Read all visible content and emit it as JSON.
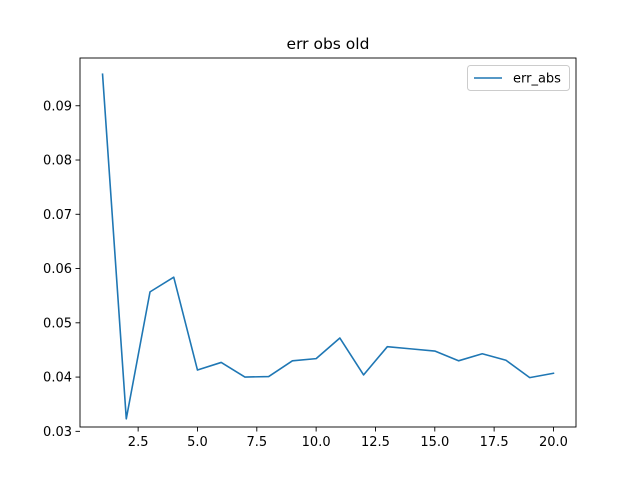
{
  "chart_data": {
    "type": "line",
    "title": "err obs old",
    "xlabel": "",
    "ylabel": "",
    "xlim": [
      0.05,
      20.95
    ],
    "ylim": [
      0.0308,
      0.0988
    ],
    "xticks": [
      2.5,
      5.0,
      7.5,
      10.0,
      12.5,
      15.0,
      17.5,
      20.0
    ],
    "xtick_labels": [
      "2.5",
      "5.0",
      "7.5",
      "10.0",
      "12.5",
      "15.0",
      "17.5",
      "20.0"
    ],
    "yticks": [
      0.03,
      0.04,
      0.05,
      0.06,
      0.07,
      0.08,
      0.09
    ],
    "ytick_labels": [
      "0.03",
      "0.04",
      "0.05",
      "0.06",
      "0.07",
      "0.08",
      "0.09"
    ],
    "grid": false,
    "legend_position": "top-right",
    "series": [
      {
        "name": "err_abs",
        "color": "#1f77b4",
        "x": [
          1,
          2,
          3,
          4,
          5,
          6,
          7,
          8,
          9,
          10,
          11,
          12,
          13,
          14,
          15,
          16,
          17,
          18,
          19,
          20
        ],
        "y": [
          0.0958,
          0.0323,
          0.0557,
          0.0584,
          0.0413,
          0.0427,
          0.04,
          0.0401,
          0.043,
          0.0434,
          0.0472,
          0.0404,
          0.0456,
          0.0452,
          0.0448,
          0.043,
          0.0443,
          0.0431,
          0.0399,
          0.0407
        ]
      }
    ]
  }
}
